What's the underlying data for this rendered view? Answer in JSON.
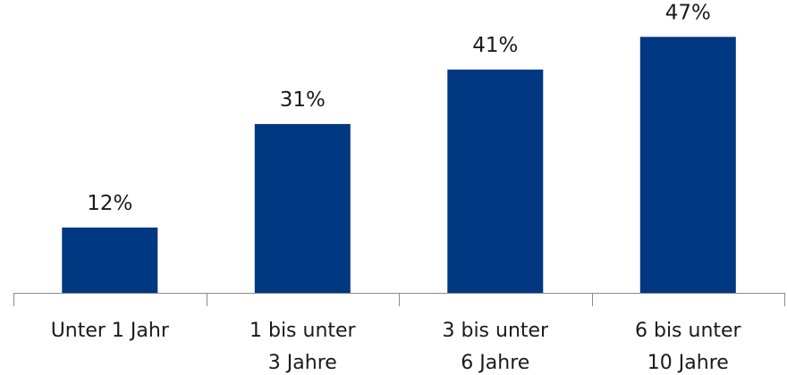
{
  "chart_data": {
    "type": "bar",
    "title": "",
    "xlabel": "",
    "ylabel": "",
    "categories": [
      [
        "Unter 1 Jahr"
      ],
      [
        "1 bis unter",
        "3 Jahre"
      ],
      [
        "3 bis unter",
        "6 Jahre"
      ],
      [
        "6 bis unter",
        "10 Jahre"
      ]
    ],
    "values": [
      12,
      31,
      41,
      47
    ],
    "value_labels": [
      "12%",
      "31%",
      "41%",
      "47%"
    ],
    "ylim": [
      0,
      50
    ],
    "grid": false,
    "legend": "none",
    "bar_color": "#003781",
    "axis_color": "#8c8c8c"
  }
}
